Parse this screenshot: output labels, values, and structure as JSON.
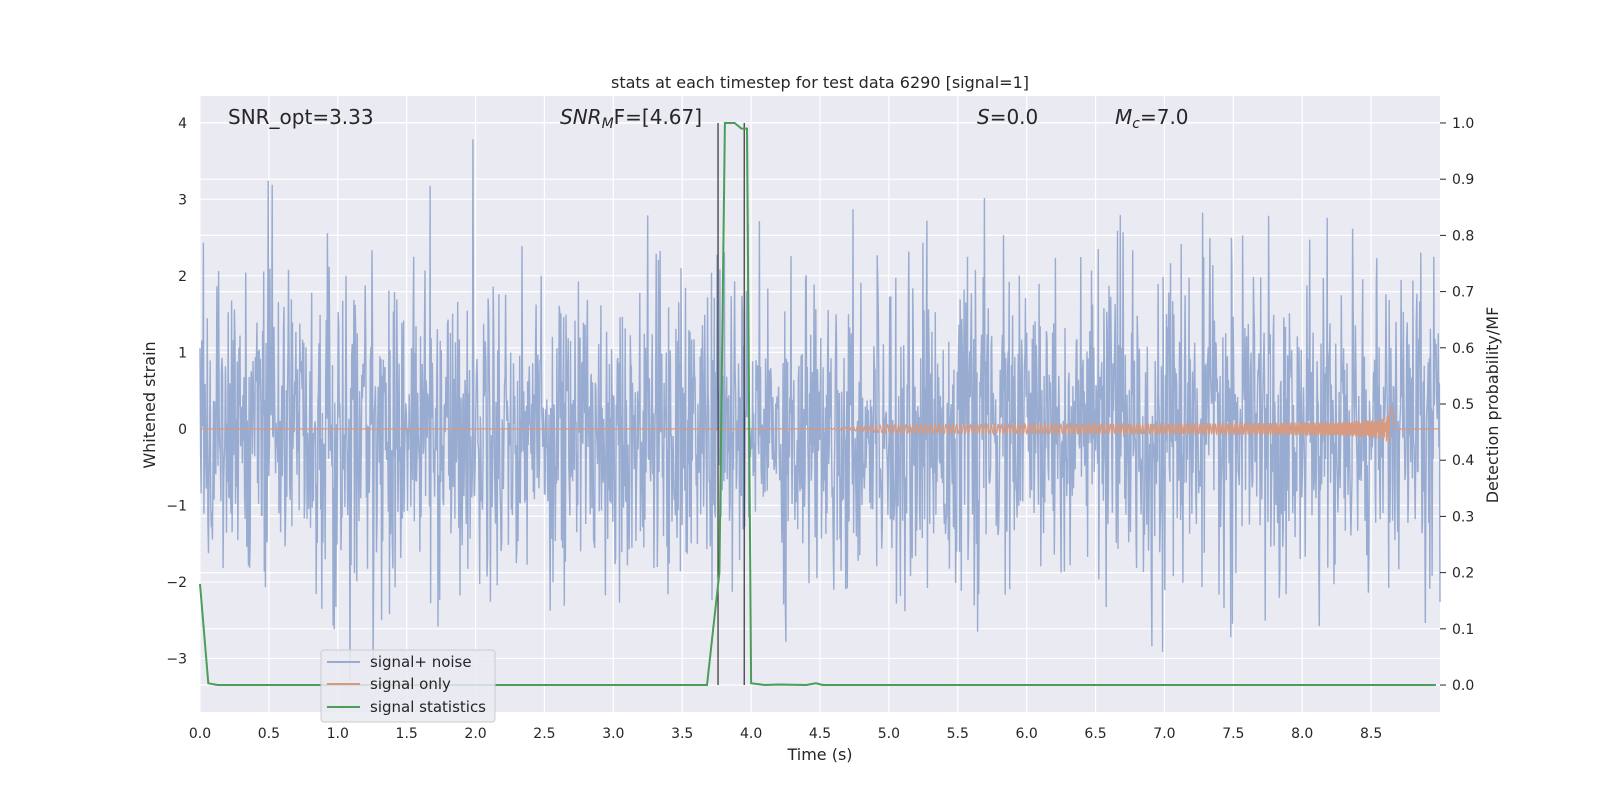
{
  "chart_data": {
    "type": "line",
    "title": "stats at each timestep for test data 6290 [signal=1]",
    "xlabel": "Time (s)",
    "ylabel_left": "Whitened strain",
    "ylabel_right": "Detection probability/MF",
    "xlim": [
      0.0,
      9.0
    ],
    "ylim_left": [
      -3.7,
      4.35
    ],
    "ylim_right": [
      -0.048,
      1.048
    ],
    "x_ticks": [
      "0.0",
      "0.5",
      "1.0",
      "1.5",
      "2.0",
      "2.5",
      "3.0",
      "3.5",
      "4.0",
      "4.5",
      "5.0",
      "5.5",
      "6.0",
      "6.5",
      "7.0",
      "7.5",
      "8.0",
      "8.5"
    ],
    "x_tick_values": [
      0,
      0.5,
      1,
      1.5,
      2,
      2.5,
      3,
      3.5,
      4,
      4.5,
      5,
      5.5,
      6,
      6.5,
      7,
      7.5,
      8,
      8.5
    ],
    "y_ticks_left": [
      "−3",
      "−2",
      "−1",
      "0",
      "1",
      "2",
      "3",
      "4"
    ],
    "y_tick_values_left": [
      -3,
      -2,
      -1,
      0,
      1,
      2,
      3,
      4
    ],
    "y_ticks_right": [
      "0.0",
      "0.1",
      "0.2",
      "0.3",
      "0.4",
      "0.5",
      "0.6",
      "0.7",
      "0.8",
      "0.9",
      "1.0"
    ],
    "y_tick_values_right": [
      0,
      0.1,
      0.2,
      0.3,
      0.4,
      0.5,
      0.6,
      0.7,
      0.8,
      0.9,
      1.0
    ],
    "grid": true,
    "legend_position": "lower-left",
    "annotations": {
      "snr_opt": "SNR_opt=3.33",
      "snr_mf_main": "SNR",
      "snr_mf_sub": "M",
      "snr_mf_rest": "F=[4.67]",
      "s_main": "S",
      "s_rest": "=0.0",
      "mc_main": "M",
      "mc_sub": "c",
      "mc_rest": "=7.0"
    },
    "vlines": [
      3.76,
      3.95
    ],
    "series": [
      {
        "name": "signal+ noise",
        "color": "#98abd0",
        "axis": "left",
        "points": 2200,
        "noise_sigma": 1.0,
        "x_range": [
          0.0,
          9.0
        ]
      },
      {
        "name": "signal only",
        "color": "#d79a80",
        "axis": "left",
        "chirp_start": 4.5,
        "merger_time": 8.65,
        "peak_amplitude": 0.3
      },
      {
        "name": "signal statistics",
        "color": "#4b9d57",
        "axis": "right",
        "x": [
          0.0,
          0.06,
          0.13,
          0.5,
          1.0,
          2.0,
          3.0,
          3.68,
          3.77,
          3.81,
          3.88,
          3.93,
          3.97,
          4.0,
          4.1,
          4.2,
          4.4,
          4.47,
          4.52,
          5.0,
          6.0,
          7.0,
          8.0,
          8.97
        ],
        "y": [
          0.18,
          0.003,
          0.0,
          0.0,
          0.0,
          0.0,
          0.0,
          0.0,
          0.2,
          1.0,
          1.0,
          0.99,
          0.99,
          0.003,
          0.0,
          0.001,
          0.0,
          0.003,
          0.0,
          0.0,
          0.0,
          0.0,
          0.0,
          0.0
        ]
      }
    ]
  }
}
